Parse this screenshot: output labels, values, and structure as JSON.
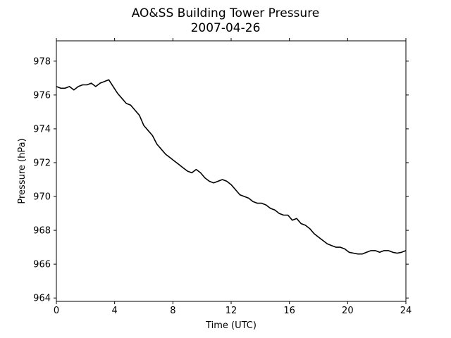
{
  "chart_data": {
    "type": "line",
    "title": "AO&SS Building Tower Pressure",
    "subtitle": "2007-04-26",
    "xlabel": "Time (UTC)",
    "ylabel": "Pressure (hPa)",
    "xlim": [
      0,
      24
    ],
    "ylim": [
      963.8,
      979.2
    ],
    "xticks": [
      0,
      4,
      8,
      12,
      16,
      20,
      24
    ],
    "yticks": [
      964,
      966,
      968,
      970,
      972,
      974,
      976,
      978
    ],
    "grid": false,
    "line_color": "#000000",
    "series": [
      {
        "x": [
          0,
          0.3,
          0.6,
          0.9,
          1.2,
          1.5,
          1.8,
          2.1,
          2.4,
          2.7,
          3.0,
          3.3,
          3.6,
          3.9,
          4.2,
          4.5,
          4.8,
          5.1,
          5.4,
          5.7,
          6.0,
          6.3,
          6.6,
          6.9,
          7.2,
          7.5,
          7.8,
          8.1,
          8.4,
          8.7,
          9.0,
          9.3,
          9.6,
          9.9,
          10.2,
          10.5,
          10.8,
          11.1,
          11.4,
          11.7,
          12.0,
          12.3,
          12.6,
          12.9,
          13.2,
          13.5,
          13.8,
          14.1,
          14.4,
          14.7,
          15.0,
          15.3,
          15.6,
          15.9,
          16.2,
          16.5,
          16.8,
          17.1,
          17.4,
          17.7,
          18.0,
          18.3,
          18.6,
          18.9,
          19.2,
          19.5,
          19.8,
          20.1,
          20.4,
          20.7,
          21.0,
          21.3,
          21.6,
          21.9,
          22.2,
          22.5,
          22.8,
          23.1,
          23.4,
          23.7,
          24.0
        ],
        "y": [
          976.5,
          976.4,
          976.4,
          976.5,
          976.3,
          976.5,
          976.6,
          976.6,
          976.7,
          976.5,
          976.7,
          976.8,
          976.9,
          976.5,
          976.1,
          975.8,
          975.5,
          975.4,
          975.1,
          974.8,
          974.2,
          973.9,
          973.6,
          973.1,
          972.8,
          972.5,
          972.3,
          972.1,
          971.9,
          971.7,
          971.5,
          971.4,
          971.6,
          971.4,
          971.1,
          970.9,
          970.8,
          970.9,
          971.0,
          970.9,
          970.7,
          970.4,
          970.1,
          970.0,
          969.9,
          969.7,
          969.6,
          969.6,
          969.5,
          969.3,
          969.2,
          969.0,
          968.9,
          968.9,
          968.6,
          968.7,
          968.4,
          968.3,
          968.1,
          967.8,
          967.6,
          967.4,
          967.2,
          967.1,
          967.0,
          967.0,
          966.9,
          966.7,
          966.65,
          966.6,
          966.6,
          966.7,
          966.8,
          966.8,
          966.7,
          966.8,
          966.8,
          966.7,
          966.65,
          966.7,
          966.8
        ]
      }
    ]
  }
}
